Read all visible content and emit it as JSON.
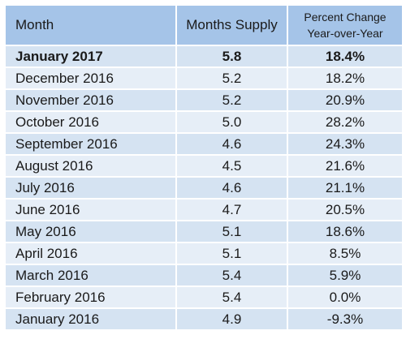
{
  "chart_data": {
    "type": "table",
    "columns": [
      "Month",
      "Months Supply",
      "Percent Change Year-over-Year"
    ],
    "header": {
      "month": "Month",
      "supply": "Months Supply",
      "change_line1": "Percent Change",
      "change_line2": "Year-over-Year"
    },
    "rows": [
      {
        "month": "January 2017",
        "supply": "5.8",
        "change": "18.4%"
      },
      {
        "month": "December 2016",
        "supply": "5.2",
        "change": "18.2%"
      },
      {
        "month": "November 2016",
        "supply": "5.2",
        "change": "20.9%"
      },
      {
        "month": "October 2016",
        "supply": "5.0",
        "change": "28.2%"
      },
      {
        "month": "September 2016",
        "supply": "4.6",
        "change": "24.3%"
      },
      {
        "month": "August 2016",
        "supply": "4.5",
        "change": "21.6%"
      },
      {
        "month": "July 2016",
        "supply": "4.6",
        "change": "21.1%"
      },
      {
        "month": "June 2016",
        "supply": "4.7",
        "change": "20.5%"
      },
      {
        "month": "May 2016",
        "supply": "5.1",
        "change": "18.6%"
      },
      {
        "month": "April 2016",
        "supply": "5.1",
        "change": "8.5%"
      },
      {
        "month": "March 2016",
        "supply": "5.4",
        "change": "5.9%"
      },
      {
        "month": "February 2016",
        "supply": "5.4",
        "change": "0.0%"
      },
      {
        "month": "January 2016",
        "supply": "4.9",
        "change": "-9.3%"
      }
    ],
    "colors": {
      "header": "#a5c4e8",
      "row_light": "#e6eef7",
      "row_dark": "#d5e3f2"
    }
  }
}
